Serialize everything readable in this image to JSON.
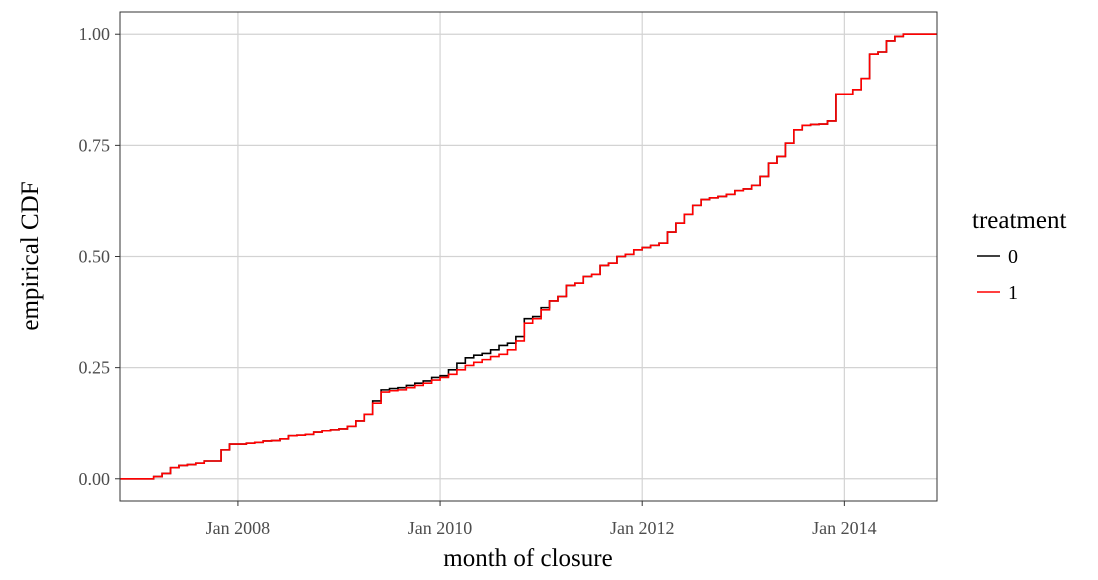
{
  "chart_data": {
    "type": "step",
    "x_label": "month of closure",
    "y_label": "empirical CDF",
    "legend_title": "treatment",
    "legend_position": "right",
    "grid": true,
    "xlim": [
      "2006-11",
      "2014-12"
    ],
    "xticks": [
      {
        "value": "2008-01",
        "label": "Jan 2008"
      },
      {
        "value": "2010-01",
        "label": "Jan 2010"
      },
      {
        "value": "2012-01",
        "label": "Jan 2012"
      },
      {
        "value": "2014-01",
        "label": "Jan 2014"
      }
    ],
    "ylim": [
      -0.05,
      1.05
    ],
    "yticks": [
      {
        "value": 0,
        "label": "0.00"
      },
      {
        "value": 0.25,
        "label": "0.25"
      },
      {
        "value": 0.5,
        "label": "0.50"
      },
      {
        "value": 0.75,
        "label": "0.75"
      },
      {
        "value": 1,
        "label": "1.00"
      }
    ],
    "x": [
      "2006-11",
      "2006-12",
      "2007-01",
      "2007-02",
      "2007-03",
      "2007-04",
      "2007-05",
      "2007-06",
      "2007-07",
      "2007-08",
      "2007-09",
      "2007-10",
      "2007-11",
      "2007-12",
      "2008-01",
      "2008-02",
      "2008-03",
      "2008-04",
      "2008-05",
      "2008-06",
      "2008-07",
      "2008-08",
      "2008-09",
      "2008-10",
      "2008-11",
      "2008-12",
      "2009-01",
      "2009-02",
      "2009-03",
      "2009-04",
      "2009-05",
      "2009-06",
      "2009-07",
      "2009-08",
      "2009-09",
      "2009-10",
      "2009-11",
      "2009-12",
      "2010-01",
      "2010-02",
      "2010-03",
      "2010-04",
      "2010-05",
      "2010-06",
      "2010-07",
      "2010-08",
      "2010-09",
      "2010-10",
      "2010-11",
      "2010-12",
      "2011-01",
      "2011-02",
      "2011-03",
      "2011-04",
      "2011-05",
      "2011-06",
      "2011-07",
      "2011-08",
      "2011-09",
      "2011-10",
      "2011-11",
      "2011-12",
      "2012-01",
      "2012-02",
      "2012-03",
      "2012-04",
      "2012-05",
      "2012-06",
      "2012-07",
      "2012-08",
      "2012-09",
      "2012-10",
      "2012-11",
      "2012-12",
      "2013-01",
      "2013-02",
      "2013-03",
      "2013-04",
      "2013-05",
      "2013-06",
      "2013-07",
      "2013-08",
      "2013-09",
      "2013-10",
      "2013-11",
      "2013-12",
      "2014-01",
      "2014-02",
      "2014-03",
      "2014-04",
      "2014-05",
      "2014-06",
      "2014-07",
      "2014-08",
      "2014-09",
      "2014-10",
      "2014-11",
      "2014-12"
    ],
    "series": [
      {
        "name": "0",
        "color": "#000000",
        "values": [
          0,
          0,
          0,
          0,
          0.005,
          0.012,
          0.025,
          0.03,
          0.032,
          0.035,
          0.04,
          0.04,
          0.065,
          0.078,
          0.078,
          0.08,
          0.082,
          0.085,
          0.086,
          0.09,
          0.097,
          0.098,
          0.1,
          0.105,
          0.108,
          0.11,
          0.112,
          0.118,
          0.13,
          0.145,
          0.175,
          0.2,
          0.203,
          0.205,
          0.21,
          0.215,
          0.22,
          0.228,
          0.232,
          0.245,
          0.26,
          0.272,
          0.278,
          0.282,
          0.29,
          0.3,
          0.305,
          0.32,
          0.36,
          0.365,
          0.385,
          0.4,
          0.41,
          0.435,
          0.44,
          0.455,
          0.46,
          0.48,
          0.485,
          0.5,
          0.505,
          0.515,
          0.52,
          0.525,
          0.53,
          0.555,
          0.575,
          0.595,
          0.615,
          0.628,
          0.632,
          0.635,
          0.64,
          0.648,
          0.652,
          0.66,
          0.68,
          0.71,
          0.725,
          0.755,
          0.785,
          0.795,
          0.797,
          0.798,
          0.805,
          0.865,
          0.865,
          0.875,
          0.9,
          0.955,
          0.96,
          0.985,
          0.995,
          1,
          1,
          1,
          1,
          1
        ]
      },
      {
        "name": "1",
        "color": "#ff0000",
        "values": [
          0,
          0,
          0,
          0,
          0.005,
          0.012,
          0.025,
          0.03,
          0.032,
          0.035,
          0.04,
          0.04,
          0.065,
          0.078,
          0.078,
          0.08,
          0.082,
          0.085,
          0.086,
          0.09,
          0.097,
          0.098,
          0.1,
          0.105,
          0.108,
          0.11,
          0.112,
          0.118,
          0.13,
          0.145,
          0.17,
          0.195,
          0.198,
          0.2,
          0.205,
          0.21,
          0.215,
          0.222,
          0.228,
          0.235,
          0.245,
          0.255,
          0.262,
          0.268,
          0.275,
          0.28,
          0.29,
          0.31,
          0.35,
          0.36,
          0.38,
          0.4,
          0.41,
          0.435,
          0.44,
          0.455,
          0.46,
          0.48,
          0.485,
          0.5,
          0.505,
          0.515,
          0.52,
          0.525,
          0.53,
          0.555,
          0.575,
          0.595,
          0.615,
          0.628,
          0.632,
          0.635,
          0.64,
          0.648,
          0.652,
          0.66,
          0.68,
          0.71,
          0.725,
          0.755,
          0.785,
          0.795,
          0.797,
          0.798,
          0.805,
          0.865,
          0.865,
          0.875,
          0.9,
          0.955,
          0.96,
          0.985,
          0.995,
          1,
          1,
          1,
          1,
          1
        ]
      }
    ]
  }
}
